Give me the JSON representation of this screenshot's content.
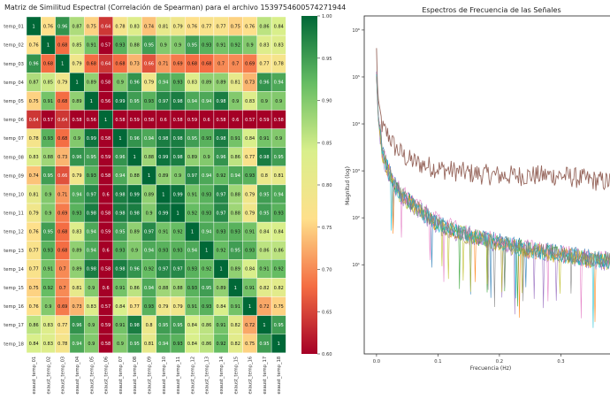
{
  "chart_data": [
    {
      "type": "heatmap",
      "title": "Matriz de Similitud Espectral (Correlación de Spearman) para el archivo 1539754600574271944",
      "rows": [
        "temp_01",
        "temp_02",
        "temp_03",
        "temp_04",
        "temp_05",
        "temp_06",
        "temp_07",
        "temp_08",
        "temp_09",
        "temp_10",
        "temp_11",
        "temp_12",
        "temp_13",
        "temp_14",
        "temp_15",
        "temp_16",
        "temp_17",
        "temp_18"
      ],
      "columns": [
        "exaust_temp_01",
        "exaust_temp_02",
        "exaust_temp_03",
        "exaust_temp_04",
        "exaust_temp_05",
        "exaust_temp_06",
        "exaust_temp_07",
        "exaust_temp_08",
        "exaust_temp_09",
        "exaust_temp_10",
        "exaust_temp_11",
        "exaust_temp_12",
        "exaust_temp_13",
        "exaust_temp_14",
        "exaust_temp_15",
        "exaust_temp_16",
        "exaust_temp_17",
        "exaust_temp_18"
      ],
      "values": [
        [
          1,
          0.76,
          0.96,
          0.87,
          0.75,
          0.64,
          0.78,
          0.83,
          0.74,
          0.81,
          0.79,
          0.76,
          0.77,
          0.77,
          0.75,
          0.76,
          0.86,
          0.84
        ],
        [
          0.76,
          1,
          0.68,
          0.85,
          0.91,
          0.57,
          0.93,
          0.88,
          0.95,
          0.9,
          0.9,
          0.95,
          0.93,
          0.91,
          0.92,
          0.9,
          0.83,
          0.83
        ],
        [
          0.96,
          0.68,
          1,
          0.79,
          0.68,
          0.64,
          0.68,
          0.73,
          0.66,
          0.71,
          0.69,
          0.68,
          0.68,
          0.7,
          0.7,
          0.69,
          0.77,
          0.78
        ],
        [
          0.87,
          0.85,
          0.79,
          1,
          0.89,
          0.58,
          0.9,
          0.96,
          0.79,
          0.94,
          0.93,
          0.83,
          0.89,
          0.89,
          0.81,
          0.73,
          0.96,
          0.94
        ],
        [
          0.75,
          0.91,
          0.68,
          0.89,
          1,
          0.56,
          0.99,
          0.95,
          0.93,
          0.97,
          0.98,
          0.94,
          0.94,
          0.98,
          0.9,
          0.83,
          0.9,
          0.9
        ],
        [
          0.64,
          0.57,
          0.64,
          0.58,
          0.56,
          1,
          0.58,
          0.59,
          0.58,
          0.6,
          0.58,
          0.59,
          0.6,
          0.58,
          0.6,
          0.57,
          0.59,
          0.58
        ],
        [
          0.78,
          0.93,
          0.68,
          0.9,
          0.99,
          0.58,
          1,
          0.96,
          0.94,
          0.98,
          0.98,
          0.95,
          0.93,
          0.98,
          0.91,
          0.84,
          0.91,
          0.9
        ],
        [
          0.83,
          0.88,
          0.73,
          0.96,
          0.95,
          0.59,
          0.96,
          1,
          0.88,
          0.99,
          0.98,
          0.89,
          0.9,
          0.96,
          0.86,
          0.77,
          0.98,
          0.95
        ],
        [
          0.74,
          0.95,
          0.66,
          0.79,
          0.93,
          0.58,
          0.94,
          0.88,
          1,
          0.89,
          0.9,
          0.97,
          0.94,
          0.92,
          0.94,
          0.93,
          0.8,
          0.81
        ],
        [
          0.81,
          0.9,
          0.71,
          0.94,
          0.97,
          0.6,
          0.98,
          0.99,
          0.89,
          1,
          0.99,
          0.91,
          0.93,
          0.97,
          0.88,
          0.79,
          0.95,
          0.94
        ],
        [
          0.79,
          0.9,
          0.69,
          0.93,
          0.98,
          0.58,
          0.98,
          0.98,
          0.9,
          0.99,
          1,
          0.92,
          0.93,
          0.97,
          0.88,
          0.79,
          0.95,
          0.93
        ],
        [
          0.76,
          0.95,
          0.68,
          0.83,
          0.94,
          0.59,
          0.95,
          0.89,
          0.97,
          0.91,
          0.92,
          1,
          0.94,
          0.93,
          0.93,
          0.91,
          0.84,
          0.84
        ],
        [
          0.77,
          0.93,
          0.68,
          0.89,
          0.94,
          0.6,
          0.93,
          0.9,
          0.94,
          0.93,
          0.93,
          0.94,
          1,
          0.92,
          0.95,
          0.93,
          0.86,
          0.86
        ],
        [
          0.77,
          0.91,
          0.7,
          0.89,
          0.98,
          0.58,
          0.98,
          0.96,
          0.92,
          0.97,
          0.97,
          0.93,
          0.92,
          1,
          0.89,
          0.84,
          0.91,
          0.92
        ],
        [
          0.75,
          0.92,
          0.7,
          0.81,
          0.9,
          0.6,
          0.91,
          0.86,
          0.94,
          0.88,
          0.88,
          0.93,
          0.95,
          0.89,
          1,
          0.91,
          0.82,
          0.82
        ],
        [
          0.76,
          0.9,
          0.69,
          0.73,
          0.83,
          0.57,
          0.84,
          0.77,
          0.93,
          0.79,
          0.79,
          0.91,
          0.93,
          0.84,
          0.91,
          1,
          0.72,
          0.75
        ],
        [
          0.86,
          0.83,
          0.77,
          0.96,
          0.9,
          0.59,
          0.91,
          0.98,
          0.8,
          0.95,
          0.95,
          0.84,
          0.86,
          0.91,
          0.82,
          0.72,
          1,
          0.95
        ],
        [
          0.84,
          0.83,
          0.78,
          0.94,
          0.9,
          0.58,
          0.9,
          0.95,
          0.81,
          0.94,
          0.93,
          0.84,
          0.86,
          0.92,
          0.82,
          0.75,
          0.95,
          1
        ]
      ],
      "colorbar": {
        "min": 0.6,
        "max": 1.0,
        "ticks": [
          "1.00",
          "0.95",
          "0.90",
          "0.85",
          "0.80",
          "0.75",
          "0.70",
          "0.65",
          "0.60"
        ],
        "colors": [
          "#a50026",
          "#f46d43",
          "#fee08b",
          "#d9ef8b",
          "#66bd63",
          "#006837"
        ]
      }
    },
    {
      "type": "line",
      "title": "Espectros de Frecuencia de las Señales",
      "xlabel": "Frecuencia (Hz)",
      "ylabel": "Magnitud (log)",
      "y_scale": "log",
      "xlim": [
        -0.02,
        0.39
      ],
      "ylim_exp": [
        -0.9,
        6.3
      ],
      "x_ticks": [
        "0.0",
        "0.1",
        "0.2",
        "0.3"
      ],
      "y_ticks": [
        "10⁶",
        "10⁵",
        "10⁴",
        "10³",
        "10²",
        "10¹"
      ],
      "series": [
        {
          "color": "#8c564b",
          "values": [
            [
              0,
              5.6
            ],
            [
              0.002,
              4.6
            ],
            [
              0.006,
              4.2
            ],
            [
              0.01,
              3.9
            ],
            [
              0.02,
              3.75
            ],
            [
              0.03,
              3.5
            ],
            [
              0.05,
              3.25
            ],
            [
              0.07,
              3.15
            ],
            [
              0.1,
              3.05
            ],
            [
              0.15,
              2.95
            ],
            [
              0.2,
              2.9
            ],
            [
              0.25,
              2.9
            ],
            [
              0.3,
              2.9
            ],
            [
              0.35,
              2.8
            ],
            [
              0.39,
              2.75
            ]
          ]
        },
        {
          "color": "#1f77b4",
          "values": [
            [
              0,
              5.1
            ],
            [
              0.003,
              4.2
            ],
            [
              0.01,
              3.4
            ],
            [
              0.02,
              3.0
            ],
            [
              0.03,
              2.7
            ],
            [
              0.05,
              2.4
            ],
            [
              0.08,
              2.1
            ],
            [
              0.1,
              1.9
            ],
            [
              0.15,
              1.65
            ],
            [
              0.2,
              1.5
            ],
            [
              0.25,
              1.35
            ],
            [
              0.3,
              1.25
            ],
            [
              0.35,
              1.15
            ],
            [
              0.39,
              1.1
            ]
          ]
        },
        {
          "color": "#ff7f0e",
          "values": [
            [
              0,
              5.0
            ],
            [
              0.003,
              4.1
            ],
            [
              0.01,
              3.35
            ],
            [
              0.02,
              2.95
            ],
            [
              0.03,
              2.65
            ],
            [
              0.05,
              2.35
            ],
            [
              0.08,
              2.05
            ],
            [
              0.1,
              1.85
            ],
            [
              0.15,
              1.6
            ],
            [
              0.2,
              1.45
            ],
            [
              0.25,
              1.3
            ],
            [
              0.3,
              1.2
            ],
            [
              0.35,
              1.1
            ],
            [
              0.39,
              1.05
            ]
          ]
        },
        {
          "color": "#2ca02c",
          "values": [
            [
              0,
              5.05
            ],
            [
              0.003,
              4.15
            ],
            [
              0.01,
              3.38
            ],
            [
              0.02,
              2.98
            ],
            [
              0.03,
              2.68
            ],
            [
              0.05,
              2.38
            ],
            [
              0.08,
              2.08
            ],
            [
              0.1,
              1.88
            ],
            [
              0.15,
              1.62
            ],
            [
              0.2,
              1.47
            ],
            [
              0.25,
              1.32
            ],
            [
              0.3,
              1.22
            ],
            [
              0.35,
              1.12
            ],
            [
              0.39,
              1.07
            ]
          ]
        },
        {
          "color": "#9467bd",
          "values": [
            [
              0,
              4.95
            ],
            [
              0.003,
              4.05
            ],
            [
              0.01,
              3.3
            ],
            [
              0.02,
              2.9
            ],
            [
              0.03,
              2.6
            ],
            [
              0.05,
              2.3
            ],
            [
              0.08,
              2.0
            ],
            [
              0.1,
              1.8
            ],
            [
              0.15,
              1.58
            ],
            [
              0.2,
              1.42
            ],
            [
              0.25,
              1.28
            ],
            [
              0.3,
              1.18
            ],
            [
              0.35,
              1.08
            ],
            [
              0.39,
              1.02
            ]
          ]
        },
        {
          "color": "#e377c2",
          "values": [
            [
              0,
              5.08
            ],
            [
              0.003,
              4.18
            ],
            [
              0.01,
              3.42
            ],
            [
              0.02,
              3.02
            ],
            [
              0.03,
              2.72
            ],
            [
              0.05,
              2.42
            ],
            [
              0.08,
              2.12
            ],
            [
              0.1,
              1.92
            ],
            [
              0.15,
              1.66
            ],
            [
              0.2,
              1.5
            ],
            [
              0.25,
              1.36
            ],
            [
              0.3,
              1.26
            ],
            [
              0.35,
              1.16
            ],
            [
              0.39,
              1.12
            ]
          ]
        },
        {
          "color": "#bcbd22",
          "values": [
            [
              0,
              4.98
            ],
            [
              0.003,
              4.08
            ],
            [
              0.01,
              3.32
            ],
            [
              0.02,
              2.92
            ],
            [
              0.03,
              2.62
            ],
            [
              0.05,
              2.33
            ],
            [
              0.08,
              2.03
            ],
            [
              0.1,
              1.83
            ],
            [
              0.15,
              1.6
            ],
            [
              0.2,
              1.44
            ],
            [
              0.25,
              1.3
            ],
            [
              0.3,
              1.2
            ],
            [
              0.35,
              1.1
            ],
            [
              0.39,
              1.04
            ]
          ]
        },
        {
          "color": "#17becf",
          "values": [
            [
              0,
              5.02
            ],
            [
              0.003,
              4.12
            ],
            [
              0.01,
              3.36
            ],
            [
              0.02,
              2.96
            ],
            [
              0.03,
              2.66
            ],
            [
              0.05,
              2.36
            ],
            [
              0.08,
              2.06
            ],
            [
              0.1,
              1.86
            ],
            [
              0.15,
              1.61
            ],
            [
              0.2,
              1.46
            ],
            [
              0.25,
              1.31
            ],
            [
              0.3,
              1.21
            ],
            [
              0.35,
              1.11
            ],
            [
              0.39,
              1.06
            ]
          ]
        },
        {
          "color": "#7f7f7f",
          "values": [
            [
              0,
              5.04
            ],
            [
              0.003,
              4.14
            ],
            [
              0.01,
              3.37
            ],
            [
              0.02,
              2.97
            ],
            [
              0.03,
              2.67
            ],
            [
              0.05,
              2.37
            ],
            [
              0.08,
              2.07
            ],
            [
              0.1,
              1.87
            ],
            [
              0.15,
              1.63
            ],
            [
              0.2,
              1.48
            ],
            [
              0.25,
              1.33
            ],
            [
              0.3,
              1.23
            ],
            [
              0.35,
              1.13
            ],
            [
              0.39,
              1.08
            ]
          ]
        }
      ]
    }
  ]
}
